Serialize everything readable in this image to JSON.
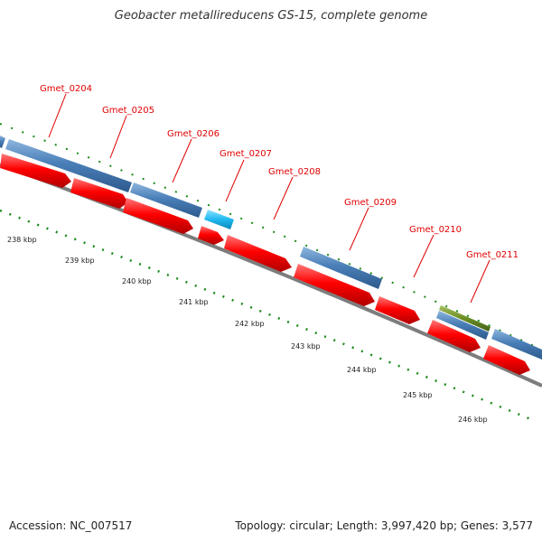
{
  "title": "Geobacter metallireducens GS-15, complete genome",
  "footer": {
    "accession": "Accession: NC_007517",
    "summary": "Topology: circular; Length: 3,997,420 bp; Genes: 3,577"
  },
  "colors": {
    "cds_red": "#ff0000",
    "gene_blue": "#4a7fb8",
    "gene_cyan": "#1fb8f0",
    "gene_olive": "#6b8e23",
    "tick_green": "#1a8a1a",
    "label_red": "#e00000",
    "backbone": "#8c8c8c"
  },
  "gene_labels": [
    "Gmet_0204",
    "Gmet_0205",
    "Gmet_0206",
    "Gmet_0207",
    "Gmet_0208",
    "Gmet_0209",
    "Gmet_0210",
    "Gmet_0211"
  ],
  "kbp_labels": [
    "238 kbp",
    "239 kbp",
    "240 kbp",
    "241 kbp",
    "242 kbp",
    "243 kbp",
    "244 kbp",
    "245 kbp",
    "246 kbp"
  ]
}
